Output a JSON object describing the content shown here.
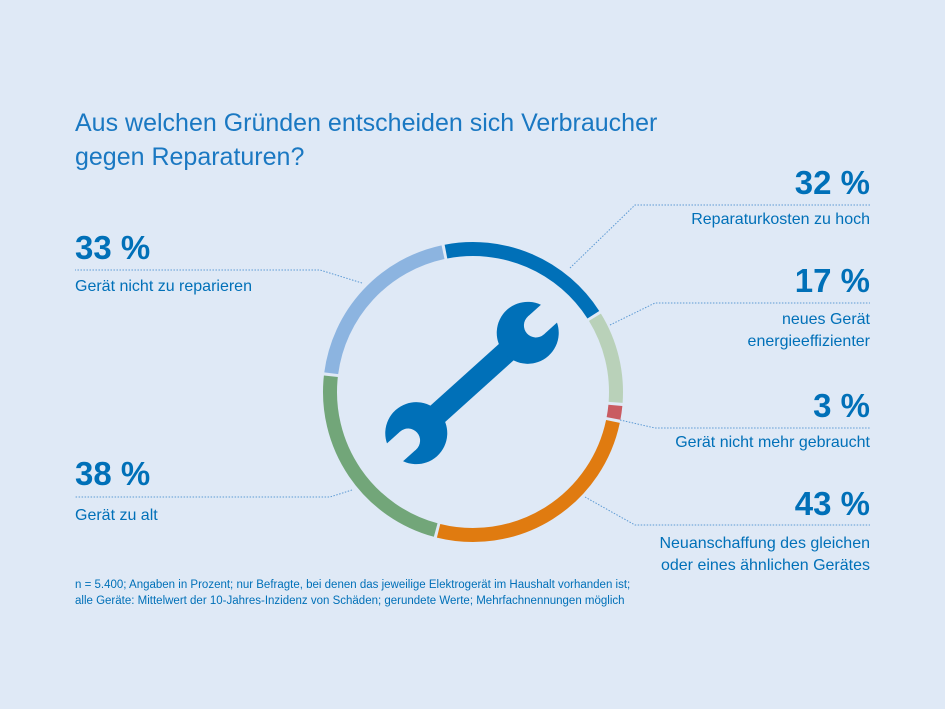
{
  "title_line1": "Aus welchen Gründen entscheiden sich Verbraucher",
  "title_line2": "gegen Reparaturen?",
  "footnote_line1": "n = 5.400; Angaben in Prozent; nur Befragte, bei denen das jeweilige Elektrogerät im Haushalt vorhanden ist;",
  "footnote_line2": "alle Geräte: Mittelwert der 10-Jahres-Inzidenz von Schäden; gerundete Werte; Mehrfachnennungen möglich",
  "center_icon": "wrench-icon",
  "chart_data": {
    "type": "pie",
    "variant": "ring",
    "unit": "%",
    "series": [
      {
        "label": "Reparaturkosten zu hoch",
        "label_lines": [
          "Reparaturkosten zu hoch"
        ],
        "value": 32,
        "value_text": "32 %",
        "color": "#0070b8"
      },
      {
        "label": "neues Gerät energieeffizienter",
        "label_lines": [
          "neues Gerät",
          "energieeffizienter"
        ],
        "value": 17,
        "value_text": "17 %",
        "color": "#b9d1b9"
      },
      {
        "label": "Gerät nicht mehr gebraucht",
        "label_lines": [
          "Gerät nicht mehr gebraucht"
        ],
        "value": 3,
        "value_text": "3 %",
        "color": "#c95b61"
      },
      {
        "label": "Neuanschaffung des gleichen oder eines ähnlichen Gerätes",
        "label_lines": [
          "Neuanschaffung des gleichen",
          "oder eines ähnlichen Gerätes"
        ],
        "value": 43,
        "value_text": "43 %",
        "color": "#e07b10"
      },
      {
        "label": "Gerät zu alt",
        "label_lines": [
          "Gerät zu alt"
        ],
        "value": 38,
        "value_text": "38 %",
        "color": "#72a679"
      },
      {
        "label": "Gerät nicht zu reparieren",
        "label_lines": [
          "Gerät nicht zu reparieren"
        ],
        "value": 33,
        "value_text": "33 %",
        "color": "#8cb4e0"
      }
    ]
  }
}
